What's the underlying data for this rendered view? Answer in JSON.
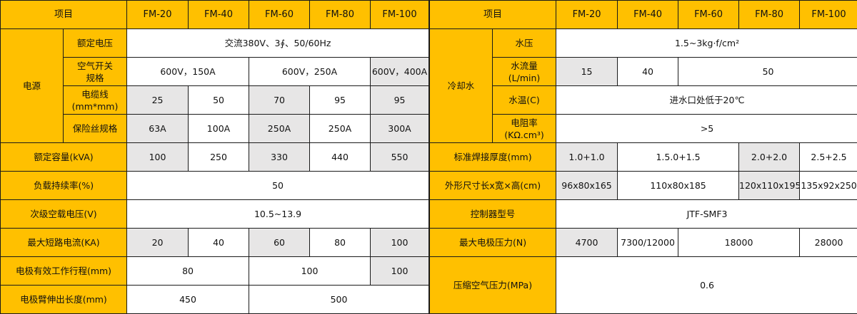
{
  "colors": {
    "header": "#FFC000",
    "shaded": "#E7E6E6",
    "border": "#1a1a1a"
  },
  "left_table": {
    "header": [
      {
        "t": "项目",
        "cs": 2
      },
      {
        "t": "FM-20"
      },
      {
        "t": "FM-40"
      },
      {
        "t": "FM-60"
      },
      {
        "t": "FM-80"
      },
      {
        "t": "FM-100"
      }
    ],
    "rows": [
      [
        {
          "t": "电源",
          "rs": 4,
          "y": true
        },
        {
          "t": "额定电压",
          "y": true
        },
        {
          "t": "交流380V、3∮、50/60Hz",
          "cs": 5
        }
      ],
      [
        {
          "t": "空气开关\n规格",
          "y": true
        },
        {
          "t": "600V，150A",
          "cs": 2
        },
        {
          "t": "600V，250A",
          "cs": 2
        },
        {
          "t": "600V，400A",
          "g": true
        }
      ],
      [
        {
          "t": "电缆线\n(mm*mm)",
          "y": true
        },
        {
          "t": "25",
          "g": true
        },
        {
          "t": "50"
        },
        {
          "t": "70",
          "g": true
        },
        {
          "t": "95"
        },
        {
          "t": "95",
          "g": true
        }
      ],
      [
        {
          "t": "保险丝规格",
          "y": true
        },
        {
          "t": "63A",
          "g": true
        },
        {
          "t": "100A"
        },
        {
          "t": "250A",
          "g": true
        },
        {
          "t": "250A"
        },
        {
          "t": "300A",
          "g": true
        }
      ],
      [
        {
          "t": "额定容量(kVA)",
          "cs": 2,
          "y": true
        },
        {
          "t": "100",
          "g": true
        },
        {
          "t": "250"
        },
        {
          "t": "330",
          "g": true
        },
        {
          "t": "440"
        },
        {
          "t": "550",
          "g": true
        }
      ],
      [
        {
          "t": "负载持续率(%)",
          "cs": 2,
          "y": true
        },
        {
          "t": "50",
          "cs": 5
        }
      ],
      [
        {
          "t": "次级空载电压(V)",
          "cs": 2,
          "y": true
        },
        {
          "t": "10.5~13.9",
          "cs": 5
        }
      ],
      [
        {
          "t": "最大短路电流(KA)",
          "cs": 2,
          "y": true
        },
        {
          "t": "20",
          "g": true
        },
        {
          "t": "40"
        },
        {
          "t": "60",
          "g": true
        },
        {
          "t": "80"
        },
        {
          "t": "100",
          "g": true
        }
      ],
      [
        {
          "t": "电极有效工作行程(mm)",
          "cs": 2,
          "y": true
        },
        {
          "t": "80",
          "cs": 2
        },
        {
          "t": "100",
          "cs": 2
        },
        {
          "t": "100",
          "g": true
        }
      ],
      [
        {
          "t": "电极臂伸出长度(mm)",
          "cs": 2,
          "y": true
        },
        {
          "t": "450",
          "cs": 2
        },
        {
          "t": "500",
          "cs": 3
        }
      ]
    ]
  },
  "right_table": {
    "header": [
      {
        "t": "项目",
        "cs": 2
      },
      {
        "t": "FM-20"
      },
      {
        "t": "FM-40"
      },
      {
        "t": "FM-60"
      },
      {
        "t": "FM-80"
      },
      {
        "t": "FM-100"
      }
    ],
    "rows": [
      [
        {
          "t": "冷却水",
          "rs": 4,
          "y": true
        },
        {
          "t": "水压",
          "y": true
        },
        {
          "t": "1.5~3kg·f/cm²",
          "cs": 5
        }
      ],
      [
        {
          "t": "水流量\n(L/min)",
          "y": true
        },
        {
          "t": "15",
          "g": true
        },
        {
          "t": "40"
        },
        {
          "t": "50",
          "cs": 3
        }
      ],
      [
        {
          "t": "水温(C)",
          "y": true
        },
        {
          "t": "进水口处低于20℃",
          "cs": 5
        }
      ],
      [
        {
          "t": "电阻率\n(KΩ.cm³)",
          "y": true
        },
        {
          "t": ">5",
          "cs": 5
        }
      ],
      [
        {
          "t": "标准焊接厚度(mm)",
          "cs": 2,
          "y": true
        },
        {
          "t": "1.0+1.0",
          "g": true
        },
        {
          "t": "1.5.0+1.5",
          "cs": 2
        },
        {
          "t": "2.0+2.0",
          "g": true
        },
        {
          "t": "2.5+2.5"
        }
      ],
      [
        {
          "t": "外形尺寸长x宽×高(cm)",
          "cs": 2,
          "y": true
        },
        {
          "t": "96x80x165",
          "g": true
        },
        {
          "t": "110x80x185",
          "cs": 2
        },
        {
          "t": "120x110x195",
          "g": true
        },
        {
          "t": "135x92x250"
        }
      ],
      [
        {
          "t": "控制器型号",
          "cs": 2,
          "y": true
        },
        {
          "t": "JTF-SMF3",
          "cs": 5
        }
      ],
      [
        {
          "t": "最大电极压力(N)",
          "cs": 2,
          "y": true
        },
        {
          "t": "4700",
          "g": true
        },
        {
          "t": "7300/12000"
        },
        {
          "t": "18000",
          "cs": 2
        },
        {
          "t": "28000"
        }
      ],
      [
        {
          "t": "压缩空气压力(MPa)",
          "cs": 2,
          "rs": 2,
          "y": true
        },
        {
          "t": "0.6",
          "cs": 5,
          "rs": 2
        }
      ],
      []
    ]
  }
}
